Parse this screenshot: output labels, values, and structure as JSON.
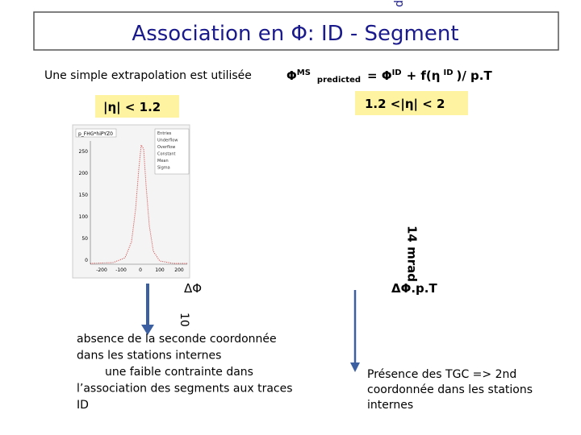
{
  "corner_fragment": "d",
  "title": "Association en Φ: ID - Segment",
  "intro": "Une simple extrapolation est utilisée",
  "formula": [
    "Φ",
    "MS",
    "predicted",
    "= Φ",
    "ID",
    "+ f(η",
    "ID",
    ")/ p.T"
  ],
  "left_region": "|η| < 1.2",
  "right_region": "1.2 <|η| < 2",
  "histogram": {
    "name": "p_FHG*hiPYZ0",
    "stats": [
      "Entries",
      "Underflow",
      "Overflow",
      "Constant",
      "Mean",
      "Sigma"
    ],
    "yticks": [
      "250",
      "200",
      "150",
      "100",
      "50",
      "0"
    ],
    "xticks": [
      "-200",
      "-100",
      "0",
      "100",
      "200"
    ]
  },
  "width_right": "14 mrad",
  "width_left": "10",
  "left_axis": "ΔΦ",
  "right_axis": "ΔΦ.p.T",
  "left_note": [
    "absence de la  seconde coordonnée",
    "dans les stations internes",
    "une faible contrainte dans",
    "l’association des segments aux traces",
    "ID"
  ],
  "right_note": [
    "Présence des TGC  => 2nd",
    "coordonnée dans les stations",
    "internes"
  ]
}
